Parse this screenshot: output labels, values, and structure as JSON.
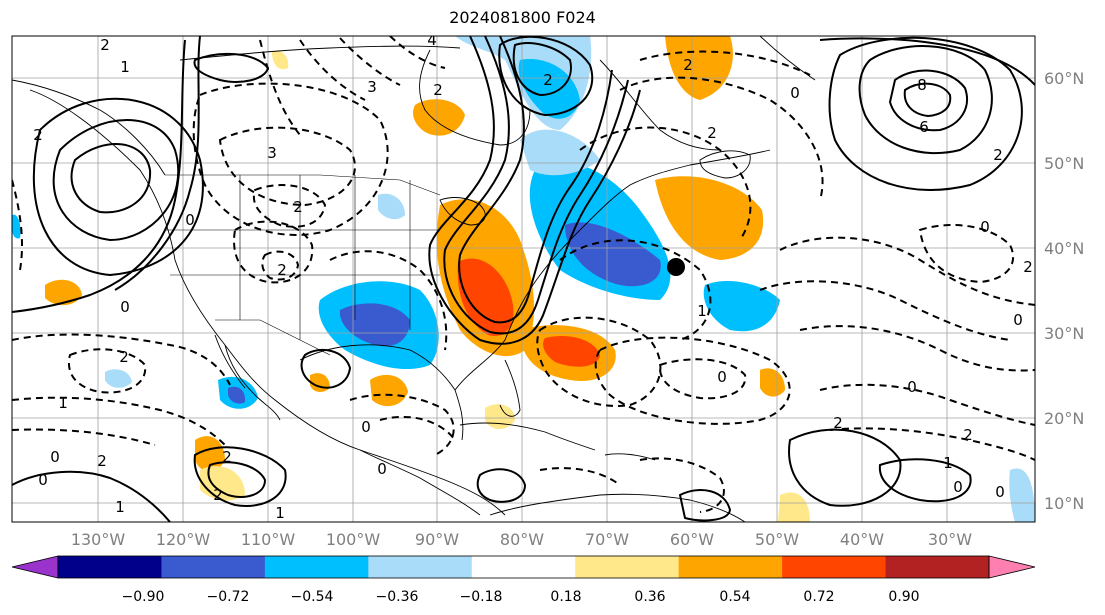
{
  "title": "2024081800 F024",
  "map": {
    "lon_labels": [
      "130°W",
      "120°W",
      "110°W",
      "100°W",
      "90°W",
      "80°W",
      "70°W",
      "60°W",
      "50°W",
      "40°W",
      "30°W"
    ],
    "lat_labels": [
      "60°N",
      "50°N",
      "40°N",
      "30°N",
      "20°N",
      "10°N"
    ]
  },
  "colorbar": {
    "labels": [
      "−0.90",
      "−0.72",
      "−0.54",
      "−0.36",
      "−0.18",
      "0.18",
      "0.36",
      "0.54",
      "0.72",
      "0.90"
    ],
    "colors": [
      "#9933cc",
      "#00008b",
      "#3a5bd0",
      "#00bfff",
      "#a8dcf8",
      "#ffffff",
      "#ffe88a",
      "#ffa500",
      "#ff4500",
      "#b22222",
      "#ff80b0"
    ]
  },
  "contour_labels": [
    "2",
    "1",
    "2",
    "3",
    "2",
    "2",
    "3",
    "0",
    "4",
    "2",
    "2",
    "2",
    "0",
    "2",
    "8",
    "6",
    "2",
    "0",
    "2",
    "0",
    "0",
    "1",
    "2",
    "0",
    "2",
    "0",
    "1",
    "1",
    "0",
    "0",
    "2",
    "2",
    "1",
    "0",
    "0",
    "2",
    "2",
    "1",
    "0",
    "0"
  ],
  "marker": "station-dot"
}
